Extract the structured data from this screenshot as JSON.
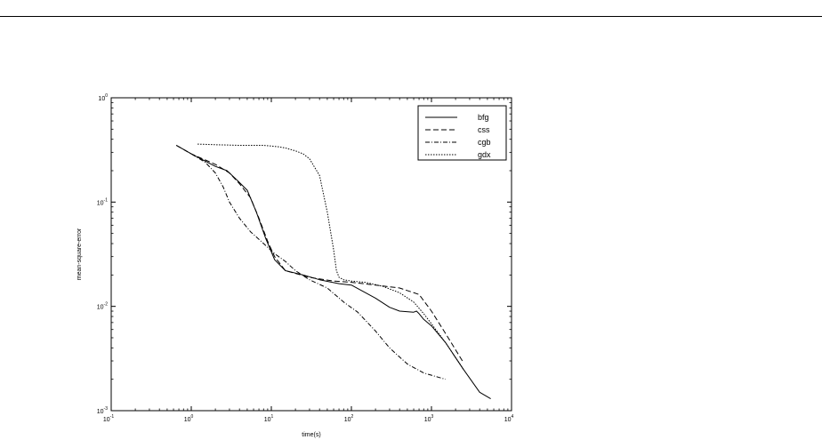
{
  "chart_data": {
    "type": "line",
    "title": "",
    "xlabel": "time(s)",
    "ylabel": "mean-square-error",
    "x_scale": "log",
    "y_scale": "log",
    "xlim": [
      0.1,
      10000
    ],
    "ylim": [
      0.001,
      1
    ],
    "x_ticks": [
      {
        "value": 0.1,
        "base": "10",
        "exp": "-1"
      },
      {
        "value": 1,
        "base": "10",
        "exp": "0"
      },
      {
        "value": 10,
        "base": "10",
        "exp": "1"
      },
      {
        "value": 100,
        "base": "10",
        "exp": "2"
      },
      {
        "value": 1000,
        "base": "10",
        "exp": "3"
      },
      {
        "value": 10000,
        "base": "10",
        "exp": "4"
      }
    ],
    "y_ticks": [
      {
        "value": 0.001,
        "base": "10",
        "exp": "-3"
      },
      {
        "value": 0.01,
        "base": "10",
        "exp": "-2"
      },
      {
        "value": 0.1,
        "base": "10",
        "exp": "-1"
      },
      {
        "value": 1,
        "base": "10",
        "exp": "0"
      }
    ],
    "grid": false,
    "legend_position": "top-right",
    "series": [
      {
        "name": "bfg",
        "dash": "solid",
        "x": [
          0.65,
          1,
          2,
          2.8,
          3.8,
          5,
          6.5,
          8.5,
          11,
          15,
          25,
          40,
          70,
          100,
          200,
          300,
          400,
          600,
          650,
          700,
          800,
          1000,
          1500,
          2500,
          4000,
          5500
        ],
        "y": [
          0.35,
          0.29,
          0.22,
          0.2,
          0.16,
          0.13,
          0.08,
          0.045,
          0.028,
          0.022,
          0.02,
          0.018,
          0.0165,
          0.016,
          0.012,
          0.0098,
          0.009,
          0.0088,
          0.009,
          0.0085,
          0.0075,
          0.0065,
          0.0045,
          0.0025,
          0.0015,
          0.0013
        ]
      },
      {
        "name": "css",
        "dash": "dashed",
        "x": [
          0.65,
          1,
          2,
          3,
          4,
          5.5,
          7,
          9,
          11,
          15,
          30,
          60,
          100,
          200,
          400,
          700,
          1000,
          1500,
          2500
        ],
        "y": [
          0.35,
          0.29,
          0.23,
          0.19,
          0.15,
          0.11,
          0.07,
          0.042,
          0.03,
          0.022,
          0.019,
          0.0175,
          0.017,
          0.016,
          0.015,
          0.013,
          0.009,
          0.0055,
          0.0029
        ]
      },
      {
        "name": "cgb",
        "dash": "dashdot",
        "x": [
          0.65,
          1,
          1.5,
          2,
          2.5,
          3,
          4,
          5.5,
          8,
          11,
          15,
          20,
          30,
          50,
          80,
          120,
          200,
          300,
          500,
          800,
          1200,
          1500
        ],
        "y": [
          0.35,
          0.29,
          0.24,
          0.19,
          0.14,
          0.1,
          0.07,
          0.052,
          0.04,
          0.032,
          0.027,
          0.022,
          0.018,
          0.015,
          0.011,
          0.0088,
          0.0058,
          0.004,
          0.0028,
          0.0023,
          0.0021,
          0.002
        ]
      },
      {
        "name": "gdx",
        "dash": "dotted",
        "x": [
          1.2,
          2,
          4,
          8,
          12,
          15,
          20,
          25,
          30,
          40,
          50,
          60,
          65,
          70,
          80,
          100,
          150,
          250,
          400,
          600,
          800,
          1000,
          1500,
          2500
        ],
        "y": [
          0.36,
          0.355,
          0.35,
          0.35,
          0.34,
          0.33,
          0.31,
          0.29,
          0.26,
          0.18,
          0.08,
          0.035,
          0.022,
          0.019,
          0.018,
          0.0175,
          0.017,
          0.0155,
          0.0135,
          0.011,
          0.0085,
          0.0068,
          0.0045,
          0.0025
        ]
      }
    ]
  }
}
